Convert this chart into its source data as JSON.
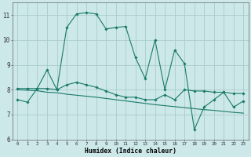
{
  "xlabel": "Humidex (Indice chaleur)",
  "xlim": [
    -0.5,
    23.5
  ],
  "ylim": [
    6,
    11.5
  ],
  "yticks": [
    6,
    7,
    8,
    9,
    10,
    11
  ],
  "xticks": [
    0,
    1,
    2,
    3,
    4,
    5,
    6,
    7,
    8,
    9,
    10,
    11,
    12,
    13,
    14,
    15,
    16,
    17,
    18,
    19,
    20,
    21,
    22,
    23
  ],
  "bg_color": "#cce8e8",
  "grid_color": "#aacccc",
  "line_color": "#1a7a6a",
  "line1_x": [
    0,
    1,
    2,
    3,
    4,
    5,
    6,
    7,
    8,
    9,
    10,
    11,
    12,
    13,
    14,
    15,
    16,
    17,
    18,
    19,
    20,
    21,
    22,
    23
  ],
  "line1_y": [
    7.6,
    7.5,
    8.05,
    8.8,
    8.0,
    10.5,
    11.05,
    11.1,
    11.05,
    10.45,
    10.5,
    10.55,
    9.3,
    8.45,
    10.0,
    8.0,
    9.6,
    9.05,
    6.4,
    7.3,
    7.6,
    7.9,
    7.3,
    7.55
  ],
  "line2_x": [
    0,
    1,
    2,
    3,
    4,
    5,
    6,
    7,
    8,
    9,
    10,
    11,
    12,
    13,
    14,
    15,
    16,
    17,
    18,
    19,
    20,
    21,
    22,
    23
  ],
  "line2_y": [
    8.05,
    8.05,
    8.05,
    8.05,
    8.0,
    8.2,
    8.3,
    8.2,
    8.1,
    7.95,
    7.8,
    7.7,
    7.7,
    7.6,
    7.6,
    7.8,
    7.6,
    8.0,
    7.95,
    7.95,
    7.9,
    7.9,
    7.85,
    7.85
  ],
  "line3_x": [
    0,
    1,
    2,
    3,
    4,
    5,
    6,
    7,
    8,
    9,
    10,
    11,
    12,
    13,
    14,
    15,
    16,
    17,
    18,
    19,
    20,
    21,
    22,
    23
  ],
  "line3_y": [
    8.0,
    7.98,
    7.96,
    7.9,
    7.88,
    7.82,
    7.78,
    7.74,
    7.7,
    7.65,
    7.6,
    7.55,
    7.5,
    7.45,
    7.4,
    7.36,
    7.32,
    7.28,
    7.24,
    7.2,
    7.17,
    7.13,
    7.09,
    7.06
  ]
}
